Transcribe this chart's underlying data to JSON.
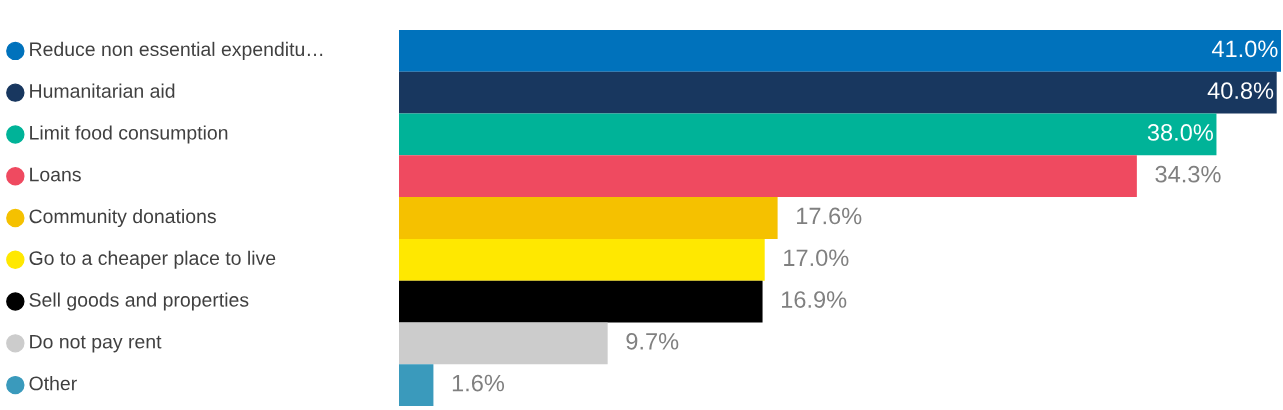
{
  "chart_data": {
    "type": "bar",
    "orientation": "horizontal",
    "value_labels": [
      "41.0%",
      "40.8%",
      "38.0%",
      "34.3%",
      "17.6%",
      "17.0%",
      "16.9%",
      "9.7%",
      "1.6%"
    ],
    "categories": [
      "Reduce non essential expenditu…",
      "Humanitarian aid",
      "Limit food consumption",
      "Loans",
      "Community donations",
      "Go to a cheaper place to live",
      "Sell goods and properties",
      "Do not pay rent",
      "Other"
    ],
    "values": [
      41.0,
      40.8,
      38.0,
      34.3,
      17.6,
      17.0,
      16.9,
      9.7,
      1.6
    ],
    "colors": [
      "#0072bc",
      "#18375f",
      "#00b398",
      "#ef4a60",
      "#f5c100",
      "#ffe800",
      "#000000",
      "#cccccc",
      "#3a9abc"
    ]
  }
}
